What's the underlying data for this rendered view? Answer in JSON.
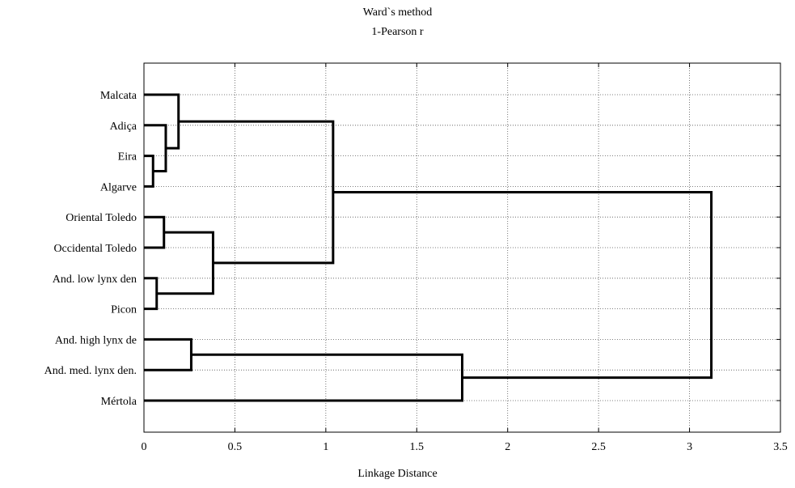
{
  "chart_data": {
    "type": "dendrogram",
    "title": "Ward`s method",
    "subtitle": "1-Pearson r",
    "xlabel": "Linkage Distance",
    "xlim": [
      0,
      3.5
    ],
    "xticks": [
      "0",
      "0.5",
      "1",
      "1.5",
      "2",
      "2.5",
      "3",
      "3.5"
    ],
    "grid": true,
    "leaves": [
      "Malcata",
      "Adiça",
      "Eira",
      "Algarve",
      "Oriental Toledo",
      "Occidental Toledo",
      "And. low lynx den",
      "Picon",
      "And. high lynx de",
      "And. med. lynx den.",
      "Mértola"
    ],
    "merges": [
      {
        "a": "Eira",
        "b": "Algarve",
        "distance": 0.05
      },
      {
        "a": "And. low lynx den",
        "b": "Picon",
        "distance": 0.07
      },
      {
        "a": "Oriental Toledo",
        "b": "Occidental Toledo",
        "distance": 0.11
      },
      {
        "a": "Adiça",
        "b": "(Eira, Algarve)",
        "distance": 0.12
      },
      {
        "a": "Malcata",
        "b": "(Adiça, Eira, Algarve)",
        "distance": 0.19
      },
      {
        "a": "And. high lynx de",
        "b": "And. med. lynx den.",
        "distance": 0.26
      },
      {
        "a": "(Oriental Toledo, Occidental Toledo)",
        "b": "(And. low lynx den, Picon)",
        "distance": 0.38
      },
      {
        "a": "(Malcata … Algarve)",
        "b": "(Oriental Toledo … Picon)",
        "distance": 1.04
      },
      {
        "a": "(And. high lynx de, And. med. lynx den.)",
        "b": "Mértola",
        "distance": 1.75
      },
      {
        "a": "(Malcata … Picon)",
        "b": "(And. high lynx de … Mértola)",
        "distance": 3.12
      }
    ]
  }
}
